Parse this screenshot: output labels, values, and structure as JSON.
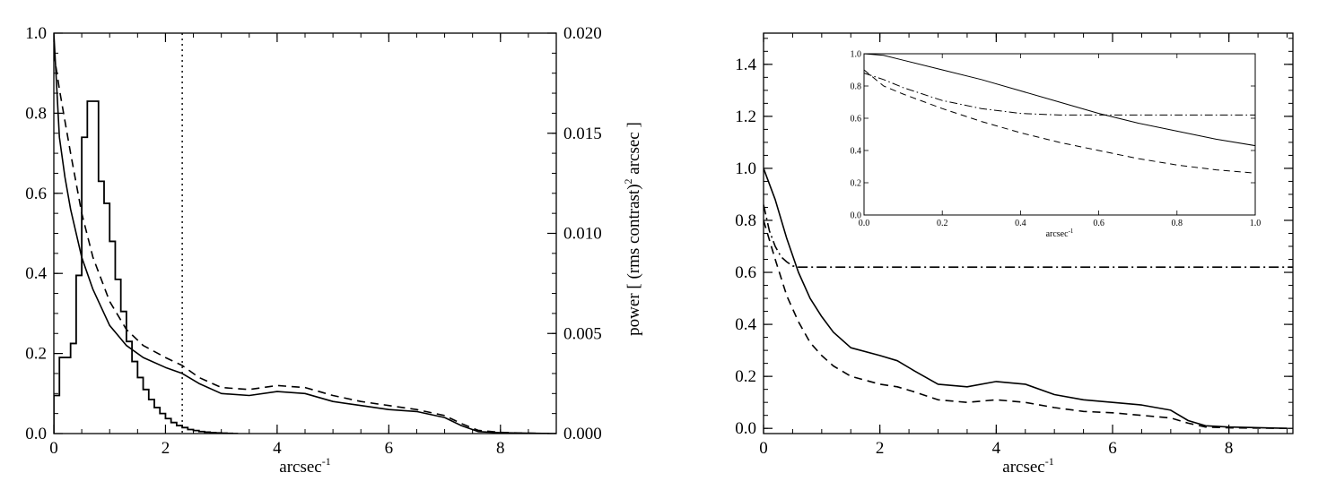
{
  "chart_data": [
    {
      "id": "left-panel",
      "type": "line",
      "title": "",
      "xlabel": "arcsec",
      "xlabel_sup": "-1",
      "ylabel": "",
      "y2label": "power [ (rms contrast)",
      "y2label_sup": "2",
      "y2label_end": " arcsec ]",
      "xlim": [
        0,
        9
      ],
      "ylim": [
        0,
        1.0
      ],
      "y2lim": [
        0,
        0.02
      ],
      "x_ticks": [
        0,
        2,
        4,
        6,
        8
      ],
      "x_tick_labels": [
        "0",
        "2",
        "4",
        "6",
        "8"
      ],
      "y_ticks": [
        0,
        0.2,
        0.4,
        0.6,
        0.8,
        1.0
      ],
      "y_tick_labels": [
        "0.0",
        "0.2",
        "0.4",
        "0.6",
        "0.8",
        "1.0"
      ],
      "y2_ticks": [
        0,
        0.005,
        0.01,
        0.015,
        0.02
      ],
      "y2_tick_labels": [
        "0.000",
        "0.005",
        "0.010",
        "0.015",
        "0.020"
      ],
      "grid": false,
      "vline": {
        "x": 2.3,
        "style": "dotted"
      },
      "series": [
        {
          "style": "solid",
          "x": [
            0,
            0.1,
            0.2,
            0.3,
            0.5,
            0.7,
            1.0,
            1.3,
            1.6,
            2.0,
            2.3,
            2.6,
            3.0,
            3.5,
            4.0,
            4.5,
            5.0,
            5.5,
            6.0,
            6.5,
            7.0,
            7.3,
            7.6,
            8.0,
            8.5,
            9.0
          ],
          "y": [
            1.0,
            0.74,
            0.64,
            0.56,
            0.44,
            0.36,
            0.27,
            0.22,
            0.19,
            0.165,
            0.15,
            0.125,
            0.1,
            0.095,
            0.105,
            0.1,
            0.08,
            0.07,
            0.06,
            0.055,
            0.04,
            0.02,
            0.005,
            0.002,
            0.001,
            0
          ]
        },
        {
          "style": "dashed",
          "x": [
            0,
            0.1,
            0.2,
            0.3,
            0.5,
            0.7,
            1.0,
            1.3,
            1.6,
            2.0,
            2.3,
            2.6,
            3.0,
            3.5,
            4.0,
            4.5,
            5.0,
            5.5,
            6.0,
            6.5,
            7.0,
            7.3,
            7.6,
            8.0,
            8.5,
            9.0
          ],
          "y": [
            0.95,
            0.86,
            0.78,
            0.7,
            0.55,
            0.44,
            0.33,
            0.26,
            0.22,
            0.19,
            0.17,
            0.14,
            0.115,
            0.11,
            0.12,
            0.115,
            0.095,
            0.08,
            0.07,
            0.06,
            0.045,
            0.025,
            0.008,
            0.003,
            0.001,
            0
          ]
        },
        {
          "style": "histogram",
          "axis": "y2",
          "bin_width": 0.1,
          "bin_start": 0,
          "values": [
            0.0019,
            0.0038,
            0.0038,
            0.0045,
            0.0079,
            0.0148,
            0.0166,
            0.0166,
            0.0126,
            0.0115,
            0.0096,
            0.0077,
            0.0061,
            0.0046,
            0.0036,
            0.0028,
            0.0022,
            0.0017,
            0.0013,
            0.001,
            0.00075,
            0.00055,
            0.0004,
            0.0003,
            0.0002,
            0.00015,
            0.0001,
            7e-05,
            5e-05,
            3e-05,
            2e-05,
            1e-05,
            0
          ]
        }
      ]
    },
    {
      "id": "right-panel",
      "type": "line",
      "title": "",
      "xlabel": "arcsec",
      "xlabel_sup": "-1",
      "ylabel": "",
      "xlim": [
        0,
        9.1
      ],
      "ylim": [
        -0.02,
        1.52
      ],
      "x_ticks": [
        0,
        2,
        4,
        6,
        8
      ],
      "x_tick_labels": [
        "0",
        "2",
        "4",
        "6",
        "8"
      ],
      "y_ticks": [
        0,
        0.2,
        0.4,
        0.6,
        0.8,
        1.0,
        1.2,
        1.4
      ],
      "y_tick_labels": [
        "0.0",
        "0.2",
        "0.4",
        "0.6",
        "0.8",
        "1.0",
        "1.2",
        "1.4"
      ],
      "grid": false,
      "series": [
        {
          "style": "solid",
          "x": [
            0,
            0.2,
            0.4,
            0.6,
            0.8,
            1.0,
            1.2,
            1.5,
            2.0,
            2.3,
            2.6,
            3.0,
            3.5,
            4.0,
            4.5,
            5.0,
            5.5,
            6.0,
            6.5,
            7.0,
            7.3,
            7.6,
            8.0,
            9.0
          ],
          "y": [
            1.0,
            0.88,
            0.73,
            0.6,
            0.5,
            0.43,
            0.37,
            0.31,
            0.28,
            0.26,
            0.22,
            0.17,
            0.16,
            0.18,
            0.17,
            0.13,
            0.11,
            0.1,
            0.09,
            0.07,
            0.03,
            0.01,
            0.005,
            0.0
          ]
        },
        {
          "style": "dashed",
          "x": [
            0,
            0.2,
            0.4,
            0.6,
            0.8,
            1.0,
            1.2,
            1.5,
            2.0,
            2.3,
            2.6,
            3.0,
            3.5,
            4.0,
            4.5,
            5.0,
            5.5,
            6.0,
            6.5,
            7.0,
            7.3,
            7.6,
            8.0,
            9.0
          ],
          "y": [
            0.8,
            0.65,
            0.51,
            0.41,
            0.33,
            0.28,
            0.24,
            0.2,
            0.17,
            0.16,
            0.14,
            0.11,
            0.1,
            0.11,
            0.1,
            0.08,
            0.065,
            0.06,
            0.05,
            0.04,
            0.02,
            0.005,
            0.002,
            0.0
          ]
        },
        {
          "style": "dashdot",
          "x": [
            0,
            0.1,
            0.2,
            0.3,
            0.4,
            0.5,
            0.6,
            9.1
          ],
          "y": [
            0.86,
            0.76,
            0.7,
            0.66,
            0.64,
            0.625,
            0.62,
            0.62
          ]
        }
      ],
      "inset": {
        "xlabel": "arcsec",
        "xlabel_sup": "-1",
        "xlim": [
          0,
          1
        ],
        "ylim": [
          0,
          1
        ],
        "x_ticks": [
          0,
          0.2,
          0.4,
          0.6,
          0.8,
          1.0
        ],
        "x_tick_labels": [
          "0.0",
          "0.2",
          "0.4",
          "0.6",
          "0.8",
          "1.0"
        ],
        "y_ticks": [
          0,
          0.2,
          0.4,
          0.6,
          0.8,
          1.0
        ],
        "y_tick_labels": [
          "0.0",
          "0.2",
          "0.4",
          "0.6",
          "0.8",
          "1.0"
        ],
        "series": [
          {
            "style": "solid",
            "x": [
              0,
              0.05,
              0.1,
              0.2,
              0.3,
              0.4,
              0.5,
              0.6,
              0.7,
              0.8,
              0.9,
              1.0
            ],
            "y": [
              1.0,
              0.99,
              0.96,
              0.9,
              0.84,
              0.77,
              0.7,
              0.63,
              0.57,
              0.52,
              0.47,
              0.43
            ]
          },
          {
            "style": "dashed",
            "x": [
              0,
              0.05,
              0.1,
              0.2,
              0.3,
              0.4,
              0.5,
              0.6,
              0.7,
              0.8,
              0.9,
              1.0
            ],
            "y": [
              0.9,
              0.8,
              0.75,
              0.66,
              0.58,
              0.51,
              0.45,
              0.4,
              0.35,
              0.31,
              0.28,
              0.26
            ]
          },
          {
            "style": "dashdot",
            "x": [
              0,
              0.05,
              0.1,
              0.2,
              0.3,
              0.4,
              0.5,
              0.6,
              0.7,
              0.8,
              0.9,
              1.0
            ],
            "y": [
              0.88,
              0.84,
              0.79,
              0.71,
              0.66,
              0.63,
              0.62,
              0.62,
              0.62,
              0.62,
              0.62,
              0.62
            ]
          }
        ]
      }
    }
  ]
}
